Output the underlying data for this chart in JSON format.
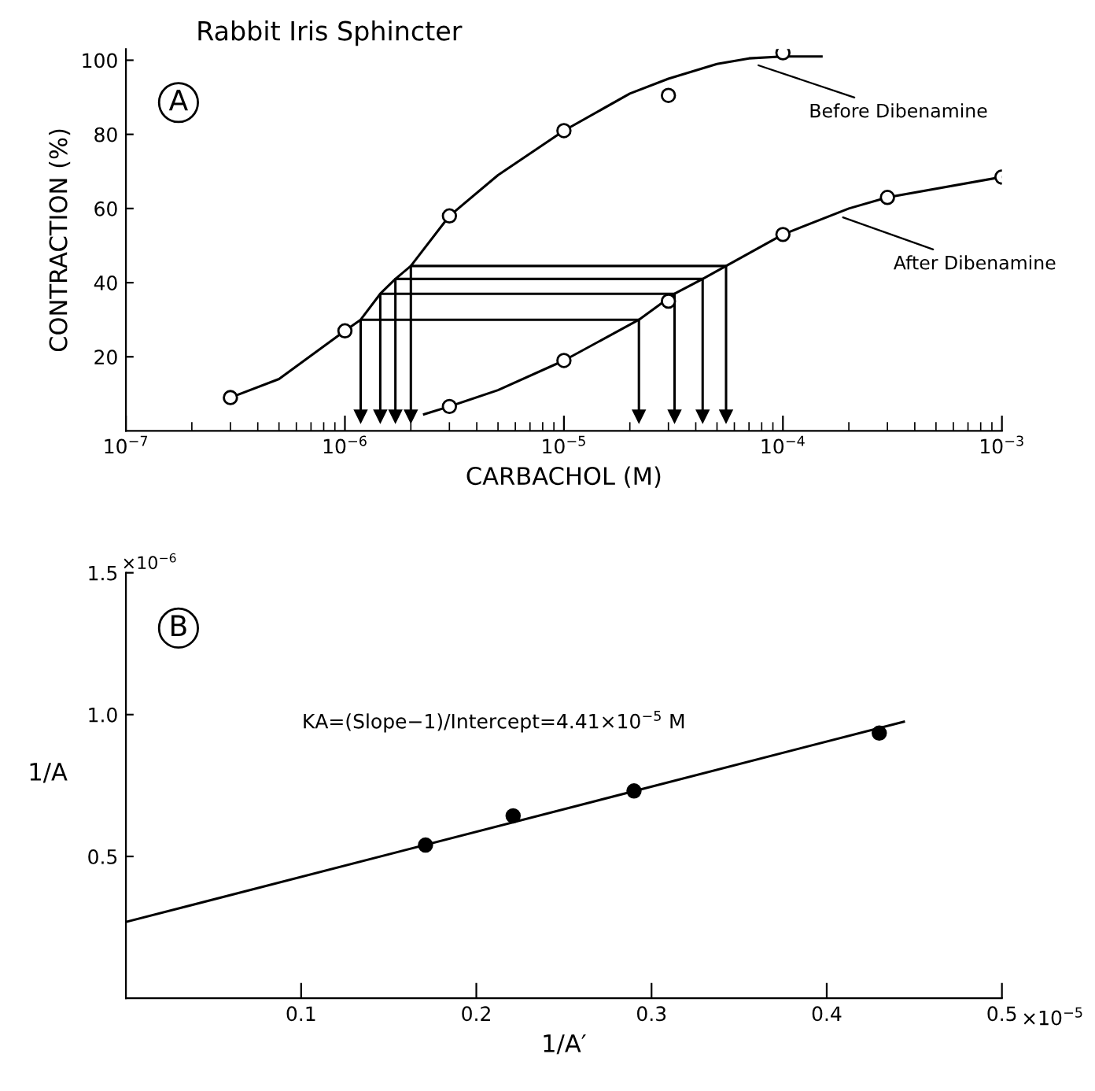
{
  "chart_data": [
    {
      "type": "line",
      "title": "Rabbit Iris Sphincter",
      "xlabel": "CARBACHOL (M)",
      "ylabel": "CONTRACTION (%)",
      "log": "x",
      "xlim": [
        1e-07,
        0.001
      ],
      "xticks": [
        {
          "value": 1e-07,
          "label": "10$^{−7}$"
        },
        {
          "value": 1e-06,
          "label": "10$^{−6}$"
        },
        {
          "value": 1e-05,
          "label": "10$^{−5}$"
        },
        {
          "value": 0.0001,
          "label": "10$^{−4}$"
        },
        {
          "value": 0.001,
          "label": "10$^{−3}$"
        }
      ],
      "ylim": [
        0,
        103
      ],
      "yticks": [
        20,
        40,
        60,
        80,
        100
      ],
      "grid": false,
      "legend": false,
      "annotations": [
        "A",
        {
          "text": "Before Dibenamine",
          "x": 7.4e-05,
          "y": 99
        },
        {
          "text": "After Dibenamine",
          "x": 0.00018,
          "y": 58
        }
      ],
      "series": [
        {
          "color": "#000000",
          "marker": "none",
          "x": [
            3e-07,
            5e-07,
            1e-06,
            1.18e-06,
            1.45e-06,
            1.7e-06,
            2e-06,
            3e-06,
            5e-06,
            1e-05,
            2e-05,
            3e-05,
            5e-05,
            7e-05,
            0.0001,
            0.00015
          ],
          "values": [
            9,
            14,
            27,
            30,
            37,
            41,
            44.5,
            58,
            69,
            81,
            91,
            95,
            99,
            100.5,
            101,
            101
          ]
        },
        {
          "type": "scatter",
          "color": "#000000",
          "marker": "circle",
          "x": [
            3e-07,
            1e-06,
            3e-06,
            1e-05,
            3e-05,
            0.0001
          ],
          "values": [
            9,
            27,
            58,
            81,
            90.5,
            102
          ]
        },
        {
          "color": "#000000",
          "marker": "none",
          "x": [
            2.3e-06,
            3e-06,
            5e-06,
            1e-05,
            2.2e-05,
            3.2e-05,
            4.3e-05,
            5.5e-05,
            0.0001,
            0.0002,
            0.0003,
            0.001
          ],
          "values": [
            4.5,
            6.6,
            11,
            19,
            30,
            37,
            41,
            44.5,
            53,
            60,
            63,
            68.5
          ]
        },
        {
          "type": "scatter",
          "color": "#000000",
          "marker": "circle",
          "x": [
            3e-06,
            1e-05,
            3e-05,
            0.0001,
            0.0003,
            0.001
          ],
          "values": [
            6.6,
            19,
            35,
            53,
            63,
            68.5
          ]
        },
        {
          "color": "#000000",
          "marker": "triangle",
          "x": [
            1.18e-06,
            1.18e-06,
            2.2e-05,
            2.2e-05
          ],
          "values": [
            4,
            30,
            30,
            4
          ]
        },
        {
          "color": "#000000",
          "marker": "triangle",
          "x": [
            1.45e-06,
            1.45e-06,
            3.2e-05,
            3.2e-05
          ],
          "values": [
            4,
            37,
            37,
            4
          ]
        },
        {
          "color": "#000000",
          "marker": "triangle",
          "x": [
            1.7e-06,
            1.7e-06,
            4.3e-05,
            4.3e-05
          ],
          "values": [
            4,
            41,
            41,
            4
          ]
        },
        {
          "color": "#000000",
          "marker": "triangle",
          "x": [
            2e-06,
            2e-06,
            5.5e-05,
            5.5e-05
          ],
          "values": [
            4,
            44.5,
            44.5,
            4
          ]
        }
      ]
    },
    {
      "type": "scatter",
      "xlabel": "1/A′",
      "ylabel": "1/A",
      "xlim": [
        0,
        0.5
      ],
      "xticks": [
        0.1,
        0.2,
        0.3,
        0.4,
        0.5
      ],
      "ylim": [
        0,
        1.5
      ],
      "yticks": [
        0.5,
        {
          "value": 1.0,
          "label": "1.0"
        },
        1.5
      ],
      "grid": false,
      "legend": false,
      "annotations": [
        "B",
        "×10$^{−6}$",
        "KA=(Slope−1)/Intercept=4.41×10$^{−5}$ M",
        "×10$^{−5}$"
      ],
      "series": [
        {
          "color": "#000000",
          "marker": "circle",
          "x": [
            0.171,
            0.221,
            0.29,
            0.43
          ],
          "values": [
            0.54,
            0.643,
            0.731,
            0.935
          ]
        },
        {
          "type": "line",
          "color": "#000000",
          "marker": "none",
          "x": [
            0,
            0.444
          ],
          "values": [
            0.269,
            0.975
          ]
        }
      ]
    }
  ]
}
